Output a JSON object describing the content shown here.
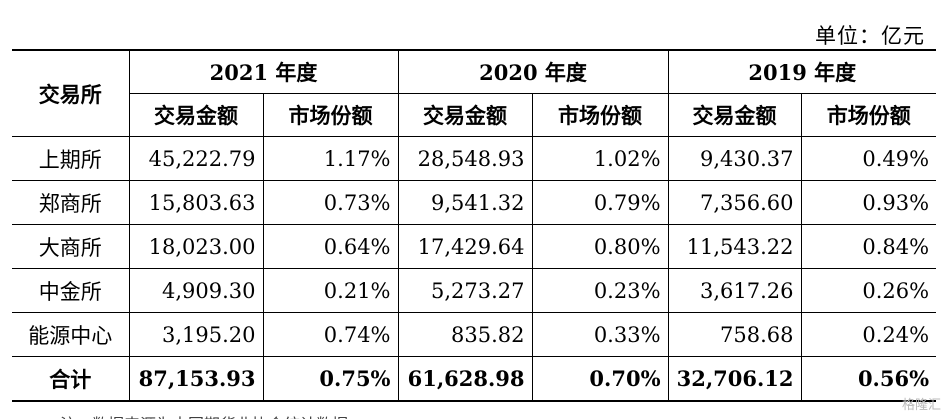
{
  "unit_label": "单位：亿元",
  "table": {
    "exchange_header": "交易所",
    "years": [
      "2021 年度",
      "2020 年度",
      "2019 年度"
    ],
    "subheaders": [
      "交易金额",
      "市场份额"
    ],
    "rows": [
      {
        "name": "上期所",
        "v": [
          "45,222.79",
          "1.17%",
          "28,548.93",
          "1.02%",
          "9,430.37",
          "0.49%"
        ]
      },
      {
        "name": "郑商所",
        "v": [
          "15,803.63",
          "0.73%",
          "9,541.32",
          "0.79%",
          "7,356.60",
          "0.93%"
        ]
      },
      {
        "name": "大商所",
        "v": [
          "18,023.00",
          "0.64%",
          "17,429.64",
          "0.80%",
          "11,543.22",
          "0.84%"
        ]
      },
      {
        "name": "中金所",
        "v": [
          "4,909.30",
          "0.21%",
          "5,273.27",
          "0.23%",
          "3,617.26",
          "0.26%"
        ]
      },
      {
        "name": "能源中心",
        "v": [
          "3,195.20",
          "0.74%",
          "835.82",
          "0.33%",
          "758.68",
          "0.24%"
        ]
      }
    ],
    "total": {
      "name": "合计",
      "v": [
        "87,153.93",
        "0.75%",
        "61,628.98",
        "0.70%",
        "32,706.12",
        "0.56%"
      ]
    }
  },
  "footnote_partial": "注：数据来源为中国期货业协会统计数据",
  "watermark": "格隆汇"
}
